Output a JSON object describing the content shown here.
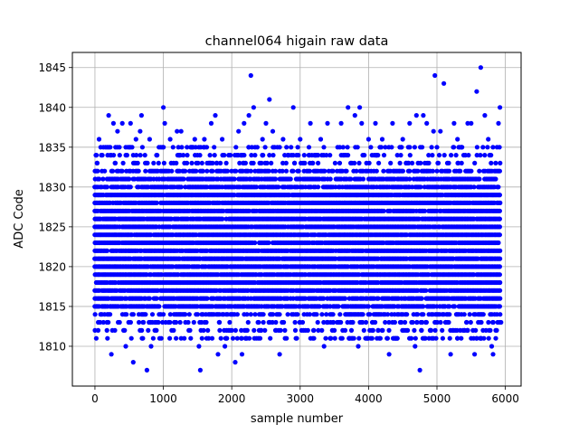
{
  "chart_data": {
    "type": "scatter",
    "title": "channel064 higain raw data",
    "xlabel": "sample number",
    "ylabel": "ADC Code",
    "xlim": [
      -330,
      6230
    ],
    "ylim": [
      1805,
      1846.9
    ],
    "x_ticks": [
      0,
      1000,
      2000,
      3000,
      4000,
      5000,
      6000
    ],
    "y_ticks": [
      1810,
      1815,
      1820,
      1825,
      1830,
      1835,
      1840,
      1845
    ],
    "grid": true,
    "marker_color": "#0000ff",
    "n_samples": 5920,
    "band": {
      "core_min": 1814,
      "core_max": 1832,
      "typical": 1823
    },
    "series": [
      {
        "outliers": [
          [
            0,
            1812
          ],
          [
            30,
            1833
          ],
          [
            60,
            1836
          ],
          [
            200,
            1839
          ],
          [
            240,
            1809
          ],
          [
            270,
            1838
          ],
          [
            330,
            1837
          ],
          [
            400,
            1838
          ],
          [
            450,
            1810
          ],
          [
            520,
            1838
          ],
          [
            560,
            1808
          ],
          [
            600,
            1836
          ],
          [
            660,
            1837
          ],
          [
            680,
            1839
          ],
          [
            760,
            1807
          ],
          [
            800,
            1836
          ],
          [
            820,
            1810
          ],
          [
            900,
            1834
          ],
          [
            1000,
            1840
          ],
          [
            1020,
            1838
          ],
          [
            1100,
            1836
          ],
          [
            1150,
            1812
          ],
          [
            1200,
            1837
          ],
          [
            1260,
            1837
          ],
          [
            1350,
            1834
          ],
          [
            1400,
            1811
          ],
          [
            1460,
            1836
          ],
          [
            1520,
            1810
          ],
          [
            1540,
            1807
          ],
          [
            1600,
            1836
          ],
          [
            1650,
            1812
          ],
          [
            1700,
            1838
          ],
          [
            1760,
            1839
          ],
          [
            1800,
            1809
          ],
          [
            1860,
            1836
          ],
          [
            1900,
            1810
          ],
          [
            2000,
            1812
          ],
          [
            2050,
            1808
          ],
          [
            2100,
            1837
          ],
          [
            2150,
            1809
          ],
          [
            2180,
            1838
          ],
          [
            2220,
            1811
          ],
          [
            2250,
            1839
          ],
          [
            2280,
            1844
          ],
          [
            2320,
            1840
          ],
          [
            2400,
            1812
          ],
          [
            2450,
            1836
          ],
          [
            2500,
            1838
          ],
          [
            2550,
            1841
          ],
          [
            2600,
            1837
          ],
          [
            2650,
            1812
          ],
          [
            2700,
            1809
          ],
          [
            2750,
            1836
          ],
          [
            2800,
            1811
          ],
          [
            2900,
            1840
          ],
          [
            2950,
            1811
          ],
          [
            3000,
            1836
          ],
          [
            3050,
            1812
          ],
          [
            3150,
            1838
          ],
          [
            3200,
            1812
          ],
          [
            3300,
            1836
          ],
          [
            3350,
            1810
          ],
          [
            3400,
            1838
          ],
          [
            3500,
            1812
          ],
          [
            3600,
            1838
          ],
          [
            3700,
            1840
          ],
          [
            3750,
            1812
          ],
          [
            3800,
            1839
          ],
          [
            3850,
            1810
          ],
          [
            3870,
            1840
          ],
          [
            3900,
            1838
          ],
          [
            4000,
            1836
          ],
          [
            4050,
            1812
          ],
          [
            4100,
            1838
          ],
          [
            4200,
            1836
          ],
          [
            4300,
            1809
          ],
          [
            4350,
            1838
          ],
          [
            4400,
            1811
          ],
          [
            4500,
            1836
          ],
          [
            4600,
            1838
          ],
          [
            4680,
            1810
          ],
          [
            4700,
            1839
          ],
          [
            4750,
            1807
          ],
          [
            4800,
            1839
          ],
          [
            4850,
            1838
          ],
          [
            4900,
            1812
          ],
          [
            4950,
            1837
          ],
          [
            4970,
            1844
          ],
          [
            5050,
            1837
          ],
          [
            5100,
            1843
          ],
          [
            5200,
            1809
          ],
          [
            5250,
            1838
          ],
          [
            5300,
            1836
          ],
          [
            5400,
            1812
          ],
          [
            5450,
            1838
          ],
          [
            5500,
            1838
          ],
          [
            5550,
            1809
          ],
          [
            5580,
            1842
          ],
          [
            5640,
            1845
          ],
          [
            5700,
            1839
          ],
          [
            5750,
            1836
          ],
          [
            5800,
            1810
          ],
          [
            5820,
            1809
          ],
          [
            5860,
            1812
          ],
          [
            5900,
            1838
          ],
          [
            5920,
            1840
          ]
        ]
      }
    ]
  }
}
